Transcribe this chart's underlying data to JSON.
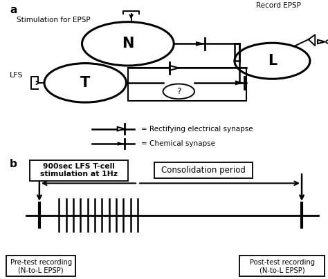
{
  "panel_a_label": "a",
  "panel_b_label": "b",
  "stim_epsp_label": "Stimulation for EPSP",
  "record_epsp_label": "Record EPSP",
  "lfs_label": "LFS",
  "legend1": "= Rectifying electrical synapse",
  "legend2": "= Chemical synapse",
  "box1_text": "900sec LFS T-cell\nstimulation at 1Hz",
  "box2_text": "Consolidation period",
  "pre_test_text": "Pre-test recording\n(N-to-L EPSP)",
  "post_test_text": "Post-test recording\n(N-to-L EPSP)",
  "bg_color": "#ffffff",
  "line_color": "#000000"
}
